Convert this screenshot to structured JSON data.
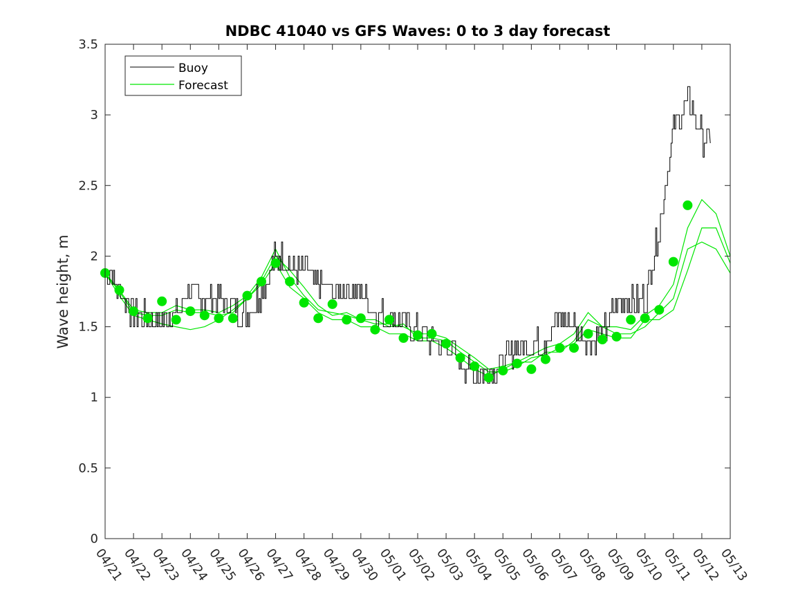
{
  "chart_data": {
    "type": "line",
    "title": "NDBC 41040 vs GFS Waves: 0 to 3 day forecast",
    "xlabel": "",
    "ylabel": "Wave height, m",
    "ylim": [
      0,
      3.5
    ],
    "yticks": [
      "0",
      "0.5",
      "1",
      "1.5",
      "2",
      "2.5",
      "3",
      "3.5"
    ],
    "xlim": [
      "04/21",
      "05/13"
    ],
    "xticks": [
      "04/21",
      "04/22",
      "04/23",
      "04/24",
      "04/25",
      "04/26",
      "04/27",
      "04/28",
      "04/29",
      "04/30",
      "05/01",
      "05/02",
      "05/03",
      "05/04",
      "05/05",
      "05/06",
      "05/07",
      "05/08",
      "05/09",
      "05/10",
      "05/11",
      "05/12",
      "05/13"
    ],
    "grid": false,
    "legend": {
      "placement": "top-left",
      "entries": [
        "Buoy",
        "Forecast"
      ]
    },
    "colors": {
      "buoy": "#000000",
      "forecast": "#00e600",
      "markers": "#00e600"
    },
    "series": [
      {
        "name": "Buoy",
        "x_days_from_0421": [
          0,
          0.5,
          1,
          1.5,
          2,
          2.5,
          3,
          3.5,
          4,
          4.5,
          5,
          5.5,
          6,
          6.5,
          7,
          7.5,
          8,
          8.5,
          9,
          9.5,
          10,
          10.5,
          11,
          11.5,
          12,
          12.5,
          13,
          13.5,
          14,
          14.5,
          15,
          15.5,
          16,
          16.5,
          17,
          17.5,
          18,
          18.5,
          19,
          19.5,
          20,
          20.5,
          21,
          21.3
        ],
        "values": [
          1.95,
          1.75,
          1.6,
          1.58,
          1.55,
          1.6,
          1.75,
          1.7,
          1.7,
          1.62,
          1.6,
          1.75,
          2.0,
          1.95,
          1.9,
          1.8,
          1.75,
          1.75,
          1.75,
          1.6,
          1.55,
          1.55,
          1.45,
          1.4,
          1.35,
          1.25,
          1.15,
          1.2,
          1.25,
          1.35,
          1.35,
          1.4,
          1.6,
          1.5,
          1.4,
          1.45,
          1.65,
          1.7,
          1.7,
          2.2,
          2.9,
          3.1,
          2.85,
          2.8
        ]
      },
      {
        "name": "Forecast",
        "x_days_from_0421": [
          0,
          0.5,
          1,
          1.5,
          2,
          2.5,
          3,
          3.5,
          4,
          4.5,
          5,
          5.5,
          6,
          6.5,
          7,
          7.5,
          8,
          8.5,
          9,
          9.5,
          10,
          10.5,
          11,
          11.5,
          12,
          12.5,
          13,
          13.5,
          14,
          14.5,
          15,
          15.5,
          16,
          16.5,
          17,
          17.5,
          18,
          18.5,
          19,
          19.5,
          20,
          20.5,
          21,
          21.5,
          22
        ],
        "values": [
          1.88,
          1.75,
          1.6,
          1.58,
          1.58,
          1.62,
          1.6,
          1.6,
          1.58,
          1.6,
          1.7,
          1.82,
          2.0,
          1.9,
          1.78,
          1.65,
          1.58,
          1.6,
          1.55,
          1.55,
          1.5,
          1.52,
          1.42,
          1.42,
          1.4,
          1.32,
          1.25,
          1.18,
          1.18,
          1.22,
          1.28,
          1.3,
          1.35,
          1.38,
          1.48,
          1.45,
          1.42,
          1.42,
          1.55,
          1.55,
          1.62,
          1.9,
          2.2,
          2.2,
          1.95
        ]
      },
      {
        "name": "Forecast",
        "x_days_from_0421": [
          0,
          0.5,
          1,
          1.5,
          2,
          2.5,
          3,
          3.5,
          4,
          4.5,
          5,
          5.5,
          6,
          6.5,
          7,
          7.5,
          8,
          8.5,
          9,
          9.5,
          10,
          10.5,
          11,
          11.5,
          12,
          12.5,
          13,
          13.5,
          14,
          14.5,
          15,
          15.5,
          16,
          16.5,
          17,
          17.5,
          18,
          18.5,
          19,
          19.5,
          20,
          20.5,
          21,
          21.5,
          22
        ],
        "values": [
          1.88,
          1.72,
          1.58,
          1.55,
          1.52,
          1.5,
          1.48,
          1.5,
          1.55,
          1.62,
          1.7,
          1.8,
          1.95,
          1.78,
          1.7,
          1.6,
          1.55,
          1.55,
          1.5,
          1.5,
          1.45,
          1.45,
          1.4,
          1.4,
          1.35,
          1.28,
          1.2,
          1.15,
          1.2,
          1.25,
          1.25,
          1.32,
          1.32,
          1.4,
          1.55,
          1.5,
          1.45,
          1.45,
          1.5,
          1.6,
          1.7,
          2.05,
          2.1,
          2.05,
          1.88
        ]
      },
      {
        "name": "Forecast",
        "x_days_from_0421": [
          0,
          0.5,
          1,
          1.5,
          2,
          2.5,
          3,
          3.5,
          4,
          4.5,
          5,
          5.5,
          6,
          6.5,
          7,
          7.5,
          8,
          8.5,
          9,
          9.5,
          10,
          10.5,
          11,
          11.5,
          12,
          12.5,
          13,
          13.5,
          14,
          14.5,
          15,
          15.5,
          16,
          16.5,
          17,
          17.5,
          18,
          18.5,
          19,
          19.5,
          20,
          20.5,
          21,
          21.5,
          22
        ],
        "values": [
          1.88,
          1.76,
          1.62,
          1.6,
          1.6,
          1.65,
          1.62,
          1.62,
          1.6,
          1.65,
          1.72,
          1.85,
          2.05,
          1.85,
          1.72,
          1.62,
          1.6,
          1.58,
          1.55,
          1.52,
          1.52,
          1.5,
          1.45,
          1.45,
          1.42,
          1.35,
          1.28,
          1.2,
          1.22,
          1.25,
          1.3,
          1.35,
          1.38,
          1.45,
          1.6,
          1.5,
          1.5,
          1.48,
          1.58,
          1.65,
          1.8,
          2.2,
          2.4,
          2.3,
          2.0
        ]
      }
    ],
    "markers": {
      "name": "Forecast",
      "x_days_from_0421": [
        0,
        0.5,
        1,
        1.5,
        2,
        2.5,
        3,
        3.5,
        4,
        4.5,
        5,
        5.5,
        6,
        6.5,
        7,
        7.5,
        8,
        8.5,
        9,
        9.5,
        10,
        10.5,
        11,
        11.5,
        12,
        12.5,
        13,
        13.5,
        14,
        14.5,
        15,
        15.5,
        16,
        16.5,
        17,
        17.5,
        18,
        18.5,
        19,
        19.5,
        20,
        20.5
      ],
      "values": [
        1.88,
        1.76,
        1.61,
        1.56,
        1.68,
        1.55,
        1.61,
        1.58,
        1.56,
        1.56,
        1.72,
        1.82,
        1.95,
        1.82,
        1.67,
        1.56,
        1.66,
        1.55,
        1.56,
        1.48,
        1.55,
        1.42,
        1.44,
        1.45,
        1.38,
        1.28,
        1.22,
        1.14,
        1.19,
        1.24,
        1.2,
        1.27,
        1.35,
        1.35,
        1.45,
        1.41,
        1.43,
        1.55,
        1.56,
        1.62,
        1.96,
        2.36
      ]
    }
  }
}
